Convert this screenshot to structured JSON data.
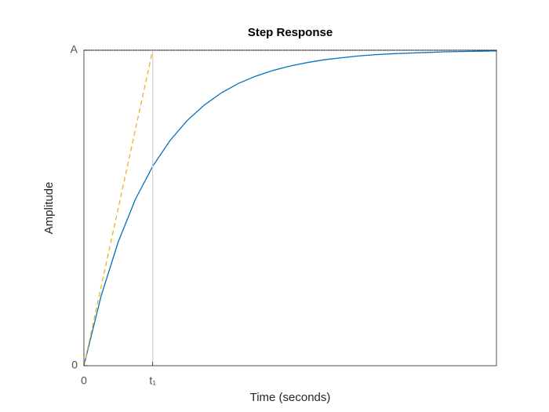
{
  "chart_data": {
    "type": "line",
    "title": "Step Response",
    "xlabel": "Time (seconds)",
    "ylabel": "Amplitude",
    "xlim": [
      0,
      6
    ],
    "ylim": [
      0,
      1
    ],
    "xticks": [
      0,
      {
        "value": 1,
        "label": "t₁"
      }
    ],
    "yticks": [
      0,
      {
        "value": 1,
        "label": "A"
      }
    ],
    "grid": false,
    "series": [
      {
        "color": "#0072bd",
        "style": "solid",
        "x": [
          0,
          0.25,
          0.5,
          0.75,
          1,
          1.25,
          1.5,
          1.75,
          2,
          2.25,
          2.5,
          2.75,
          3,
          3.25,
          3.5,
          3.75,
          4,
          4.25,
          4.5,
          4.75,
          5,
          5.25,
          5.5,
          5.75,
          6
        ],
        "values": [
          0,
          0.221,
          0.393,
          0.528,
          0.632,
          0.713,
          0.777,
          0.826,
          0.865,
          0.895,
          0.918,
          0.936,
          0.95,
          0.961,
          0.97,
          0.976,
          0.982,
          0.986,
          0.989,
          0.991,
          0.993,
          0.995,
          0.996,
          0.997,
          0.998
        ]
      },
      {
        "color": "#edb120",
        "style": "dashed",
        "x": [
          0,
          1
        ],
        "values": [
          0,
          1
        ]
      },
      {
        "color": "#000000",
        "style": "dotted",
        "x": [
          0,
          6
        ],
        "values": [
          1,
          1
        ]
      },
      {
        "color": "#d4d4d4",
        "style": "solid",
        "x": [
          1,
          1
        ],
        "values": [
          0,
          1
        ]
      }
    ]
  }
}
